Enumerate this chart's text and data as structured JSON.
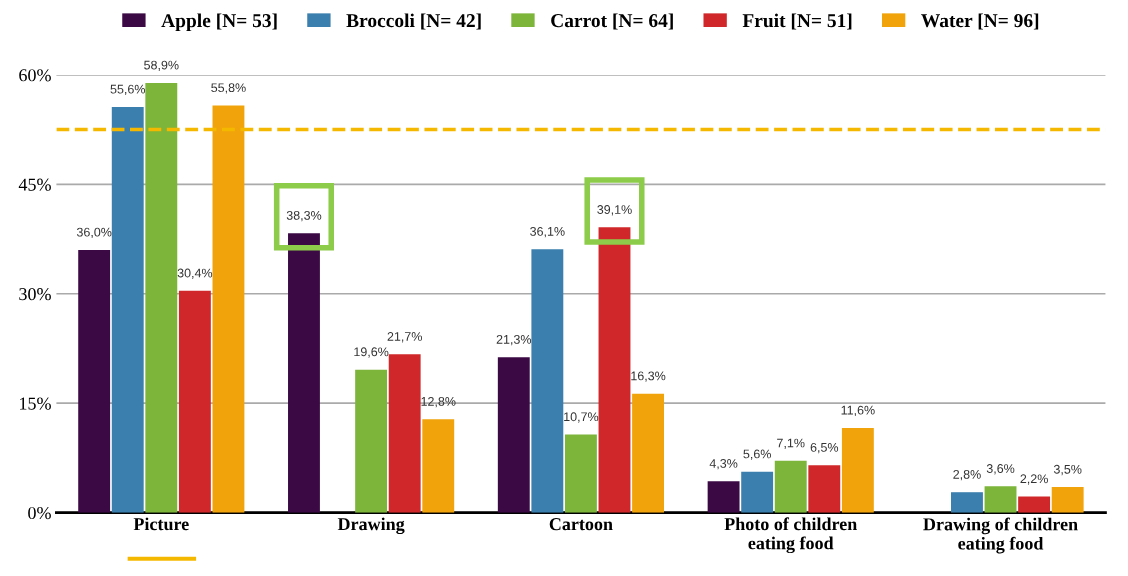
{
  "chart_data": {
    "type": "bar",
    "categories": [
      "Picture",
      "Drawing",
      "Cartoon",
      "Photo of children\neating food",
      "Drawing of children\neating food"
    ],
    "series": [
      {
        "name": "Apple [N= 53]",
        "color": "#3b0a45",
        "values": [
          36.0,
          38.3,
          21.3,
          4.3,
          null
        ],
        "value_labels": [
          "36,0%",
          "38,3%",
          "21,3%",
          "4,3%",
          null
        ]
      },
      {
        "name": "Broccoli [N= 42]",
        "color": "#3a7fad",
        "values": [
          55.6,
          null,
          36.1,
          5.6,
          2.8
        ],
        "value_labels": [
          "55,6%",
          null,
          "36,1%",
          "5,6%",
          "2,8%"
        ]
      },
      {
        "name": "Carrot [N= 64]",
        "color": "#7db43a",
        "values": [
          58.9,
          19.6,
          10.7,
          7.1,
          3.6
        ],
        "value_labels": [
          "58,9%",
          "19,6%",
          "10,7%",
          "7,1%",
          "3,6%"
        ]
      },
      {
        "name": "Fruit [N= 51]",
        "color": "#d0282a",
        "values": [
          30.4,
          21.7,
          39.1,
          6.5,
          2.2
        ],
        "value_labels": [
          "30,4%",
          "21,7%",
          "39,1%",
          "6,5%",
          "2,2%"
        ]
      },
      {
        "name": "Water [N= 96]",
        "color": "#f0a30a",
        "values": [
          55.8,
          12.8,
          16.3,
          11.6,
          3.5
        ],
        "value_labels": [
          "55,8%",
          "12,8%",
          "16,3%",
          "11,6%",
          "3,5%"
        ]
      }
    ],
    "ylim": [
      0,
      60
    ],
    "yticks": [
      {
        "value": 0,
        "label": "0%"
      },
      {
        "value": 15,
        "label": "15%"
      },
      {
        "value": 30,
        "label": "30%"
      },
      {
        "value": 45,
        "label": "45%"
      },
      {
        "value": 60,
        "label": "60%"
      }
    ],
    "ref_lines": [
      {
        "axis": "y",
        "value": 52.5,
        "color": "#f5b800",
        "line_style": "dashed"
      }
    ],
    "grid": "y",
    "legend": "top"
  }
}
